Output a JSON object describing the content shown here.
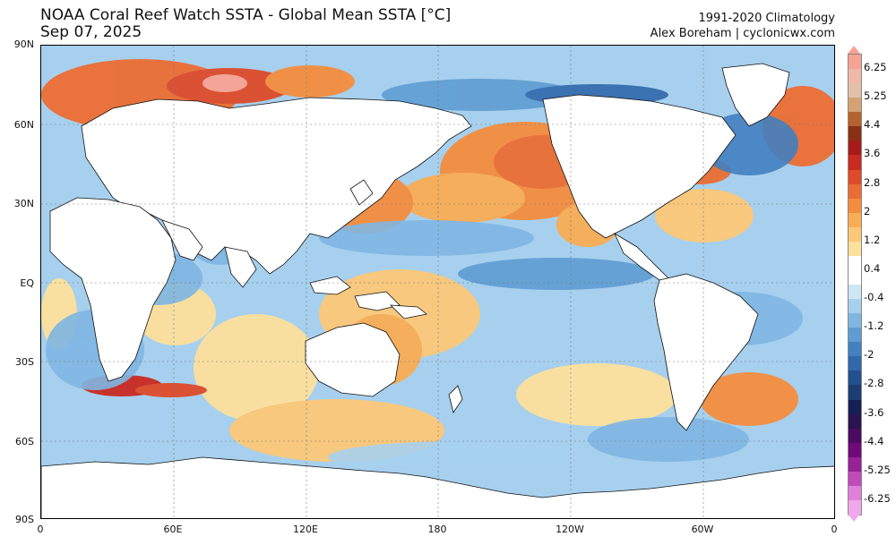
{
  "header": {
    "title_line1": "NOAA Coral Reef Watch SSTA - Global Mean SSTA [°C]",
    "title_line2": "Sep 07, 2025",
    "right_line1": "1991-2020 Climatology",
    "right_line2": "Alex Boreham | cyclonicwx.com"
  },
  "axes": {
    "lat_labels": [
      "90N",
      "60N",
      "30N",
      "EQ",
      "30S",
      "60S",
      "90S"
    ],
    "lon_labels": [
      "0",
      "60E",
      "120E",
      "180",
      "120W",
      "60W",
      "0"
    ]
  },
  "colorbar": {
    "ticks": [
      "6.25",
      "5.25",
      "4.4",
      "3.6",
      "2.8",
      "2",
      "1.2",
      "0.4",
      "-0.4",
      "-1.2",
      "-2",
      "-2.8",
      "-3.6",
      "-4.4",
      "-5.25",
      "-6.25"
    ],
    "colors": [
      "#f7a394",
      "#f0b8a8",
      "#e2c1a8",
      "#d4a274",
      "#b4622e",
      "#8a3017",
      "#a61a1a",
      "#c92a22",
      "#dd4b2b",
      "#ec6d33",
      "#f48d3e",
      "#f9ad55",
      "#fcc877",
      "#fde09c",
      "#ffffff",
      "#ffffff",
      "#cfe6f5",
      "#a6d0ee",
      "#7fb6e2",
      "#5e9cd3",
      "#4380c0",
      "#3068ab",
      "#23508f",
      "#1b3d74",
      "#161f55",
      "#2a1352",
      "#4d0a63",
      "#6f0a78",
      "#962296",
      "#c04bbb",
      "#e07fda",
      "#f0a8ec"
    ]
  }
}
